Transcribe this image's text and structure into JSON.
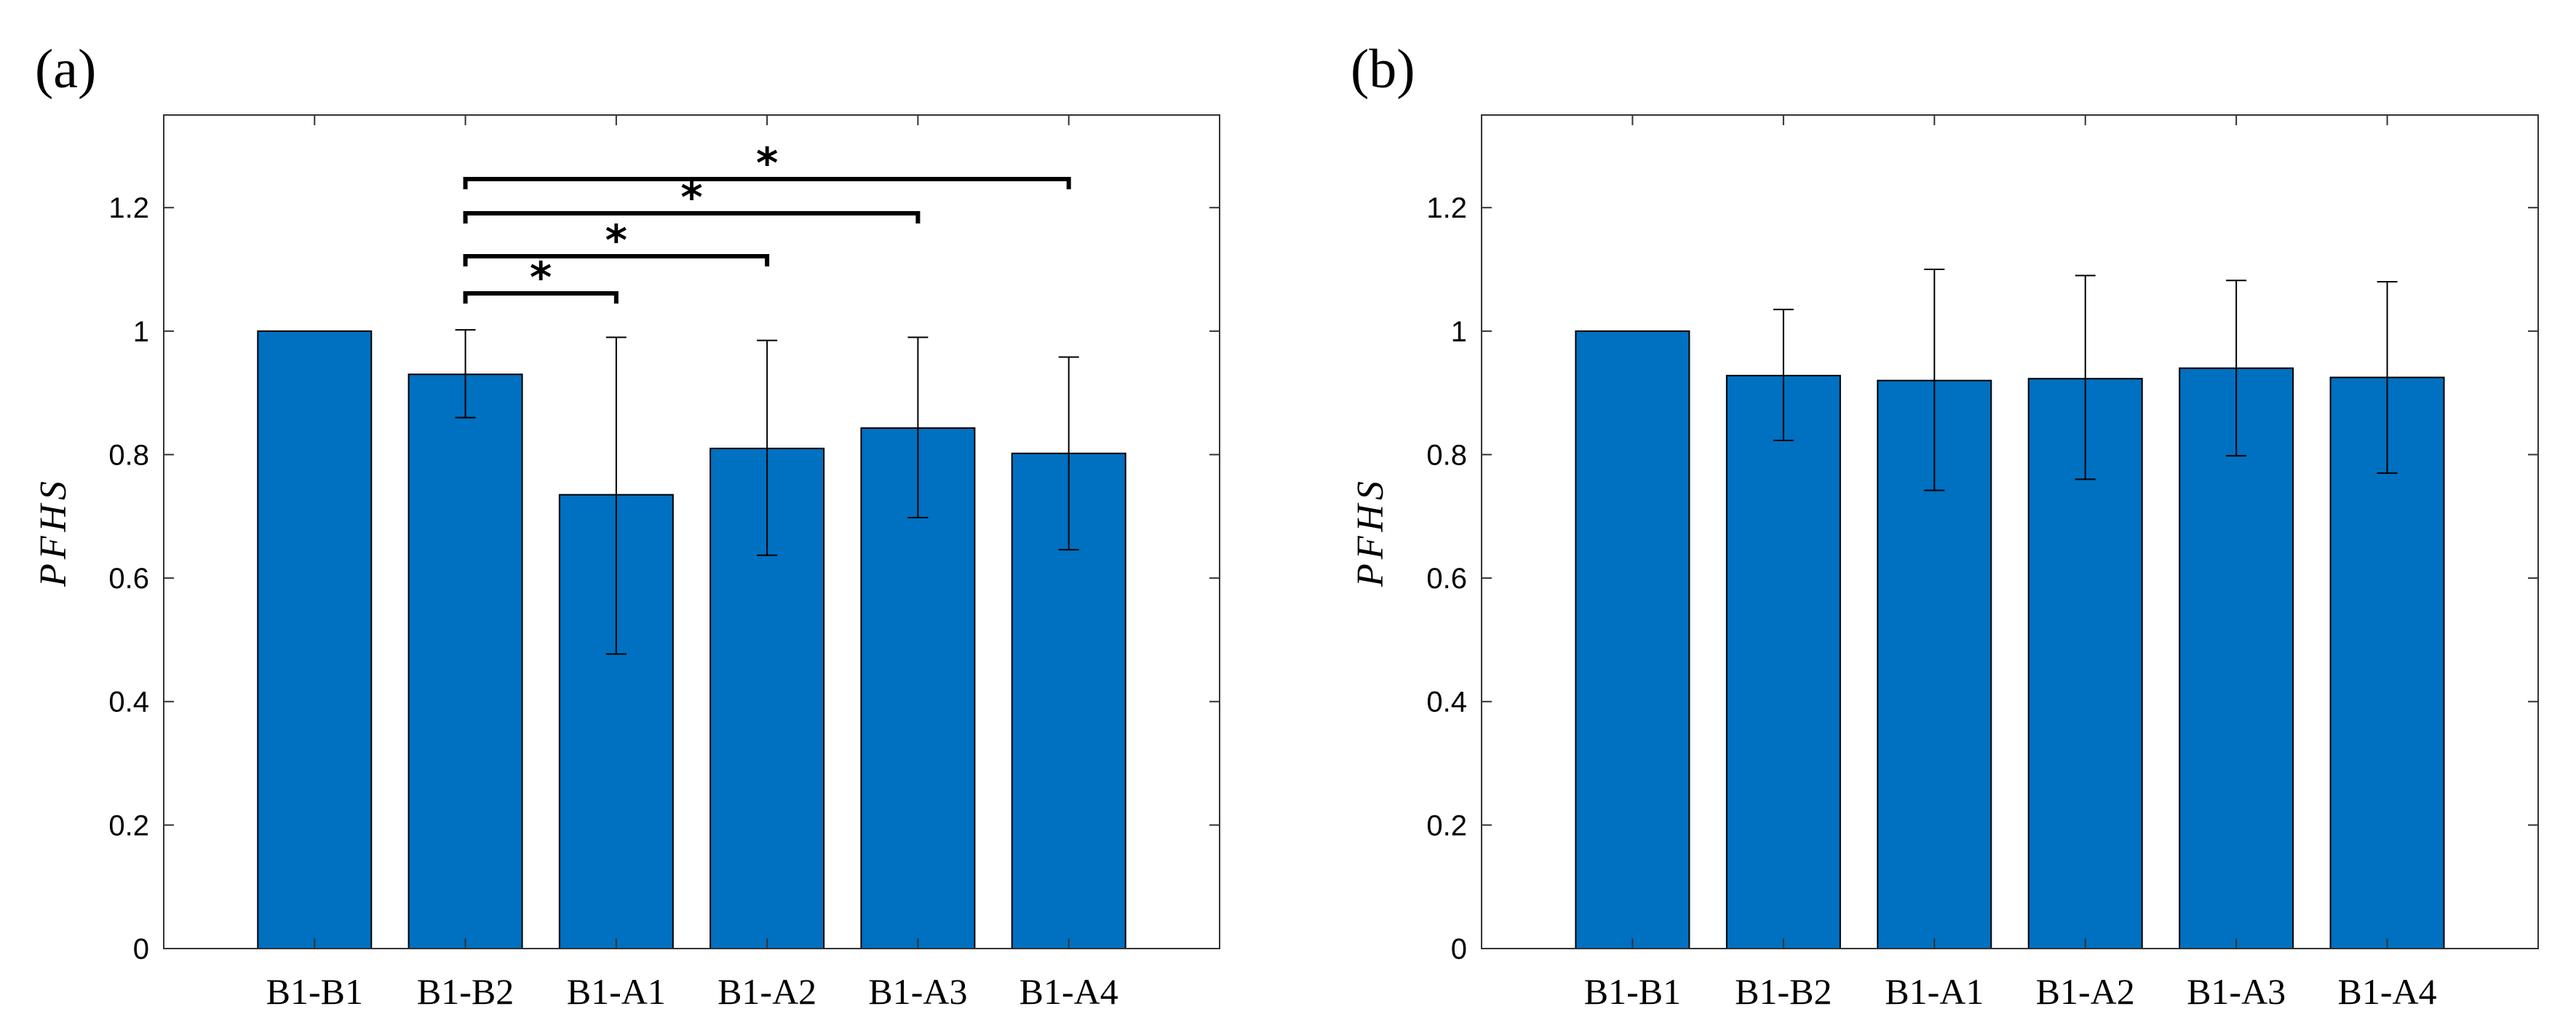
{
  "chart_data": [
    {
      "type": "bar",
      "panel_label": "(a)",
      "categories": [
        "B1-B1",
        "B1-B2",
        "B1-A1",
        "B1-A2",
        "B1-A3",
        "B1-A4"
      ],
      "values": [
        1.0,
        0.93,
        0.735,
        0.81,
        0.843,
        0.802
      ],
      "error_upper": [
        null,
        1.002,
        0.99,
        0.985,
        0.99,
        0.958
      ],
      "error_lower": [
        null,
        0.86,
        0.477,
        0.637,
        0.698,
        0.646
      ],
      "ylabel": "PFHS",
      "xlabel": "",
      "ylim": [
        0,
        1.35
      ],
      "yticks": [
        "0",
        "0.2",
        "0.4",
        "0.6",
        "0.8",
        "1",
        "1.2"
      ],
      "grid": false,
      "bar_color": "#0070c0",
      "significance": [
        {
          "from": "B1-B2",
          "to": "B1-A1",
          "label": "*"
        },
        {
          "from": "B1-B2",
          "to": "B1-A2",
          "label": "*"
        },
        {
          "from": "B1-B2",
          "to": "B1-A3",
          "label": "*"
        },
        {
          "from": "B1-B2",
          "to": "B1-A4",
          "label": "*"
        }
      ]
    },
    {
      "type": "bar",
      "panel_label": "(b)",
      "categories": [
        "B1-B1",
        "B1-B2",
        "B1-A1",
        "B1-A2",
        "B1-A3",
        "B1-A4"
      ],
      "values": [
        1.0,
        0.928,
        0.92,
        0.923,
        0.94,
        0.925
      ],
      "error_upper": [
        null,
        1.035,
        1.1,
        1.09,
        1.082,
        1.08
      ],
      "error_lower": [
        null,
        0.823,
        0.742,
        0.76,
        0.798,
        0.77
      ],
      "ylabel": "PFHS",
      "xlabel": "",
      "ylim": [
        0,
        1.35
      ],
      "yticks": [
        "0",
        "0.2",
        "0.4",
        "0.6",
        "0.8",
        "1",
        "1.2"
      ],
      "grid": false,
      "bar_color": "#0070c0",
      "significance": []
    }
  ]
}
